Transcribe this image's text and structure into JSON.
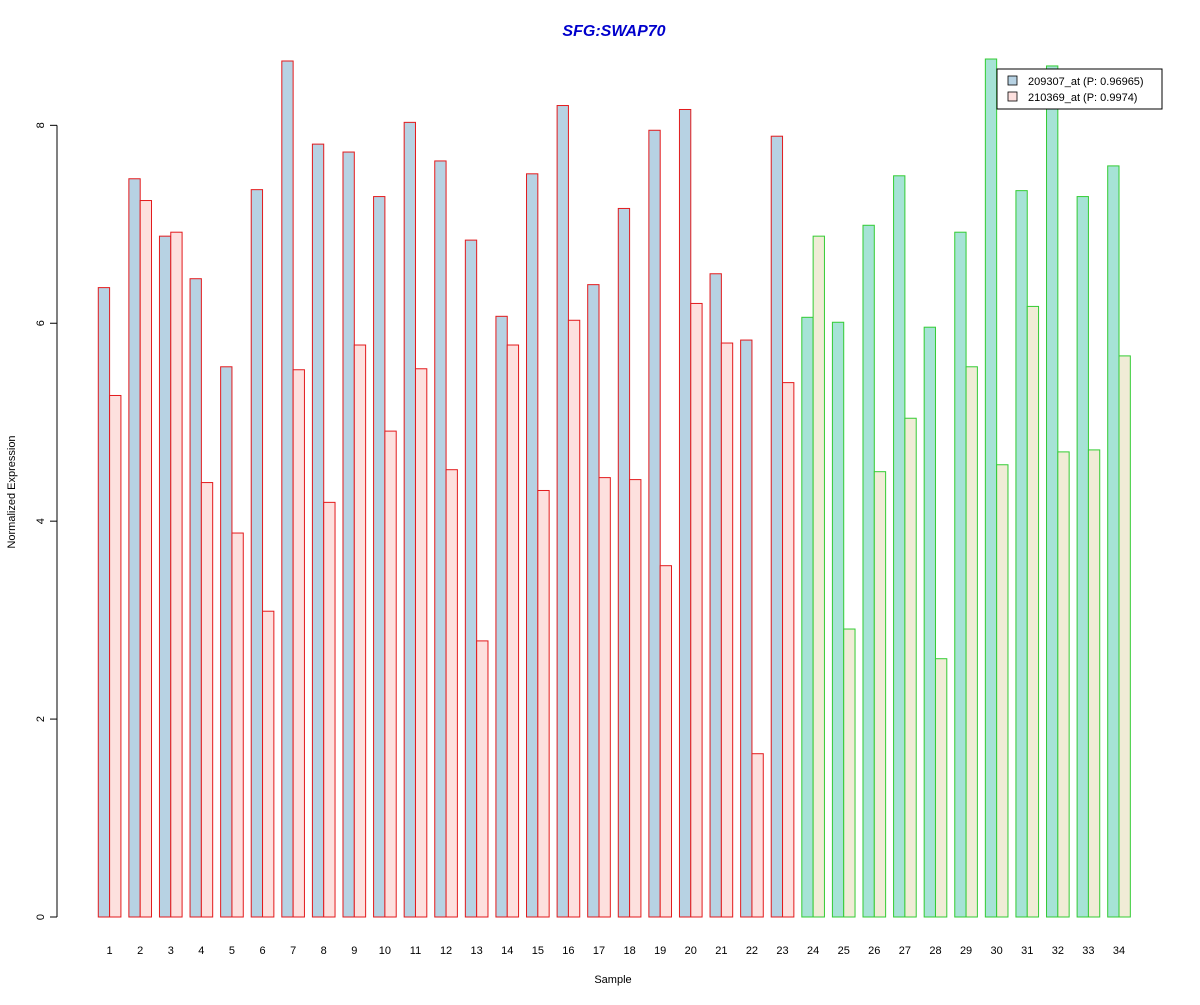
{
  "chart_data": {
    "type": "bar",
    "title": "SFG:SWAP70",
    "xlabel": "Sample",
    "ylabel": "Normalized Expression",
    "ylim": [
      0,
      8.65
    ],
    "yticks": [
      0,
      2,
      4,
      6,
      8
    ],
    "grid": false,
    "legend_position": "top-right",
    "categories": [
      "1",
      "2",
      "3",
      "4",
      "5",
      "6",
      "7",
      "8",
      "9",
      "10",
      "11",
      "12",
      "13",
      "14",
      "15",
      "16",
      "17",
      "18",
      "19",
      "20",
      "21",
      "22",
      "23",
      "24",
      "25",
      "26",
      "27",
      "28",
      "29",
      "30",
      "31",
      "32",
      "33",
      "34"
    ],
    "series": [
      {
        "name": "209307_at (P: 0.96965)",
        "values": [
          6.36,
          7.46,
          6.88,
          6.45,
          5.56,
          7.35,
          8.65,
          7.81,
          7.73,
          7.28,
          8.03,
          7.64,
          6.84,
          6.07,
          7.51,
          8.2,
          6.39,
          7.16,
          7.95,
          8.16,
          6.5,
          5.83,
          7.89,
          6.06,
          6.01,
          6.99,
          7.49,
          5.96,
          6.92,
          8.67,
          7.34,
          8.6,
          7.28,
          7.59
        ]
      },
      {
        "name": "210369_at (P: 0.9974)",
        "values": [
          5.27,
          7.24,
          6.92,
          4.39,
          3.88,
          3.09,
          5.53,
          4.19,
          5.78,
          4.91,
          5.54,
          4.52,
          2.79,
          5.78,
          4.31,
          6.03,
          4.44,
          4.42,
          3.55,
          6.2,
          5.8,
          1.65,
          5.4,
          6.88,
          2.91,
          4.5,
          5.04,
          2.61,
          5.56,
          4.57,
          6.17,
          4.7,
          4.72,
          5.67
        ]
      }
    ],
    "groups": [
      {
        "samples": [
          1,
          23
        ],
        "border_color": "#e31a1c"
      },
      {
        "samples": [
          24,
          34
        ],
        "border_color": "#33cc33"
      }
    ],
    "colors": {
      "title": "#0000cc",
      "group1_fill_a": "#b7d2e3",
      "group1_fill_b": "#fde0de",
      "group2_fill_a": "#a6e3d6",
      "group2_fill_b": "#f0ecd6",
      "axis": "#000000"
    }
  }
}
